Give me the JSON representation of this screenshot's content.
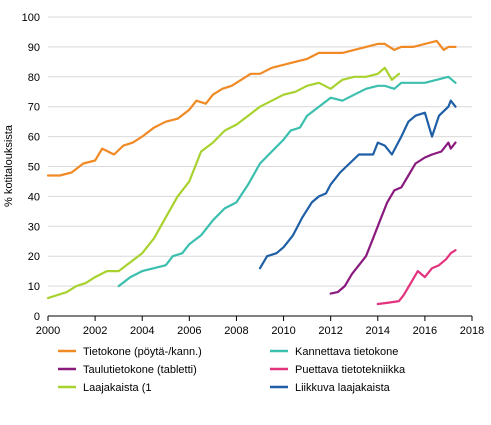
{
  "chart_data": {
    "type": "line",
    "title": "",
    "xlabel": "",
    "ylabel": "% kotitalouksista",
    "xlim": [
      2000,
      2018
    ],
    "ylim": [
      0,
      100
    ],
    "xticks": [
      "2000",
      "2002",
      "2004",
      "2006",
      "2008",
      "2010",
      "2012",
      "2014",
      "2016",
      "2018"
    ],
    "yticks": [
      "0",
      "10",
      "20",
      "30",
      "40",
      "50",
      "60",
      "70",
      "80",
      "90",
      "100"
    ],
    "grid": "horizontal",
    "legend_position": "bottom",
    "series": [
      {
        "name": "Tietokone (pöytä-/kann.)",
        "color": "#f08a24",
        "points": [
          [
            2000,
            47
          ],
          [
            2000.5,
            47
          ],
          [
            2001,
            48
          ],
          [
            2001.5,
            51
          ],
          [
            2002,
            52
          ],
          [
            2002.3,
            56
          ],
          [
            2002.8,
            54
          ],
          [
            2003.2,
            57
          ],
          [
            2003.6,
            58
          ],
          [
            2004,
            60
          ],
          [
            2004.5,
            63
          ],
          [
            2005,
            65
          ],
          [
            2005.5,
            66
          ],
          [
            2006,
            69
          ],
          [
            2006.3,
            72
          ],
          [
            2006.7,
            71
          ],
          [
            2007,
            74
          ],
          [
            2007.4,
            76
          ],
          [
            2007.8,
            77
          ],
          [
            2008.2,
            79
          ],
          [
            2008.6,
            81
          ],
          [
            2009,
            81
          ],
          [
            2009.5,
            83
          ],
          [
            2010,
            84
          ],
          [
            2010.5,
            85
          ],
          [
            2011,
            86
          ],
          [
            2011.5,
            88
          ],
          [
            2012,
            88
          ],
          [
            2012.5,
            88
          ],
          [
            2013,
            89
          ],
          [
            2013.5,
            90
          ],
          [
            2014,
            91
          ],
          [
            2014.3,
            91
          ],
          [
            2014.7,
            89
          ],
          [
            2015,
            90
          ],
          [
            2015.5,
            90
          ],
          [
            2016,
            91
          ],
          [
            2016.5,
            92
          ],
          [
            2016.8,
            89
          ],
          [
            2017,
            90
          ],
          [
            2017.3,
            90
          ]
        ]
      },
      {
        "name": "Kannettava tietokone",
        "color": "#3cbfae",
        "points": [
          [
            2003,
            10
          ],
          [
            2003.5,
            13
          ],
          [
            2004,
            15
          ],
          [
            2004.5,
            16
          ],
          [
            2005,
            17
          ],
          [
            2005.3,
            20
          ],
          [
            2005.7,
            21
          ],
          [
            2006,
            24
          ],
          [
            2006.5,
            27
          ],
          [
            2007,
            32
          ],
          [
            2007.5,
            36
          ],
          [
            2008,
            38
          ],
          [
            2008.5,
            44
          ],
          [
            2009,
            51
          ],
          [
            2009.5,
            55
          ],
          [
            2010,
            59
          ],
          [
            2010.3,
            62
          ],
          [
            2010.7,
            63
          ],
          [
            2011,
            67
          ],
          [
            2011.5,
            70
          ],
          [
            2012,
            73
          ],
          [
            2012.5,
            72
          ],
          [
            2013,
            74
          ],
          [
            2013.5,
            76
          ],
          [
            2014,
            77
          ],
          [
            2014.3,
            77
          ],
          [
            2014.7,
            76
          ],
          [
            2015,
            78
          ],
          [
            2015.5,
            78
          ],
          [
            2016,
            78
          ],
          [
            2016.5,
            79
          ],
          [
            2017,
            80
          ],
          [
            2017.3,
            78
          ]
        ]
      },
      {
        "name": "Taulutietokone (tabletti)",
        "color": "#8a1a7e",
        "points": [
          [
            2012,
            7.5
          ],
          [
            2012.3,
            8
          ],
          [
            2012.6,
            10
          ],
          [
            2012.9,
            14
          ],
          [
            2013.2,
            17
          ],
          [
            2013.5,
            20
          ],
          [
            2013.8,
            26
          ],
          [
            2014.1,
            32
          ],
          [
            2014.4,
            38
          ],
          [
            2014.7,
            42
          ],
          [
            2015,
            43
          ],
          [
            2015.3,
            47
          ],
          [
            2015.6,
            51
          ],
          [
            2016,
            53
          ],
          [
            2016.3,
            54
          ],
          [
            2016.7,
            55
          ],
          [
            2017,
            58
          ],
          [
            2017.1,
            56
          ],
          [
            2017.3,
            58
          ]
        ]
      },
      {
        "name": "Puettava tietotekniikka",
        "color": "#e3327e",
        "points": [
          [
            2014,
            4
          ],
          [
            2014.5,
            4.5
          ],
          [
            2014.9,
            5
          ],
          [
            2015.1,
            7
          ],
          [
            2015.4,
            11
          ],
          [
            2015.7,
            15
          ],
          [
            2016,
            13
          ],
          [
            2016.3,
            16
          ],
          [
            2016.6,
            17
          ],
          [
            2016.9,
            19
          ],
          [
            2017.1,
            21
          ],
          [
            2017.3,
            22
          ]
        ]
      },
      {
        "name": "Laajakaista (1",
        "color": "#a8d22f",
        "points": [
          [
            2000,
            6
          ],
          [
            2000.4,
            7
          ],
          [
            2000.8,
            8
          ],
          [
            2001.2,
            10
          ],
          [
            2001.6,
            11
          ],
          [
            2002,
            13
          ],
          [
            2002.5,
            15
          ],
          [
            2003,
            15
          ],
          [
            2003.5,
            18
          ],
          [
            2004,
            21
          ],
          [
            2004.5,
            26
          ],
          [
            2005,
            33
          ],
          [
            2005.5,
            40
          ],
          [
            2006,
            45
          ],
          [
            2006.5,
            55
          ],
          [
            2007,
            58
          ],
          [
            2007.5,
            62
          ],
          [
            2008,
            64
          ],
          [
            2008.5,
            67
          ],
          [
            2009,
            70
          ],
          [
            2009.5,
            72
          ],
          [
            2010,
            74
          ],
          [
            2010.5,
            75
          ],
          [
            2011,
            77
          ],
          [
            2011.5,
            78
          ],
          [
            2012,
            76
          ],
          [
            2012.5,
            79
          ],
          [
            2013,
            80
          ],
          [
            2013.5,
            80
          ],
          [
            2014,
            81
          ],
          [
            2014.3,
            83
          ],
          [
            2014.6,
            79
          ],
          [
            2014.9,
            81
          ]
        ]
      },
      {
        "name": "Liikkuva laajakaista",
        "color": "#1f5fa6",
        "points": [
          [
            2009,
            16
          ],
          [
            2009.3,
            20
          ],
          [
            2009.7,
            21
          ],
          [
            2010,
            23
          ],
          [
            2010.4,
            27
          ],
          [
            2010.8,
            33
          ],
          [
            2011.2,
            38
          ],
          [
            2011.5,
            40
          ],
          [
            2011.8,
            41
          ],
          [
            2012,
            44
          ],
          [
            2012.4,
            48
          ],
          [
            2012.8,
            51
          ],
          [
            2013.2,
            54
          ],
          [
            2013.5,
            54
          ],
          [
            2013.8,
            54
          ],
          [
            2014,
            58
          ],
          [
            2014.3,
            57
          ],
          [
            2014.6,
            54
          ],
          [
            2015,
            60
          ],
          [
            2015.3,
            65
          ],
          [
            2015.6,
            67
          ],
          [
            2016,
            68
          ],
          [
            2016.3,
            60
          ],
          [
            2016.6,
            67
          ],
          [
            2017,
            70
          ],
          [
            2017.1,
            72
          ],
          [
            2017.3,
            70
          ]
        ]
      }
    ]
  }
}
